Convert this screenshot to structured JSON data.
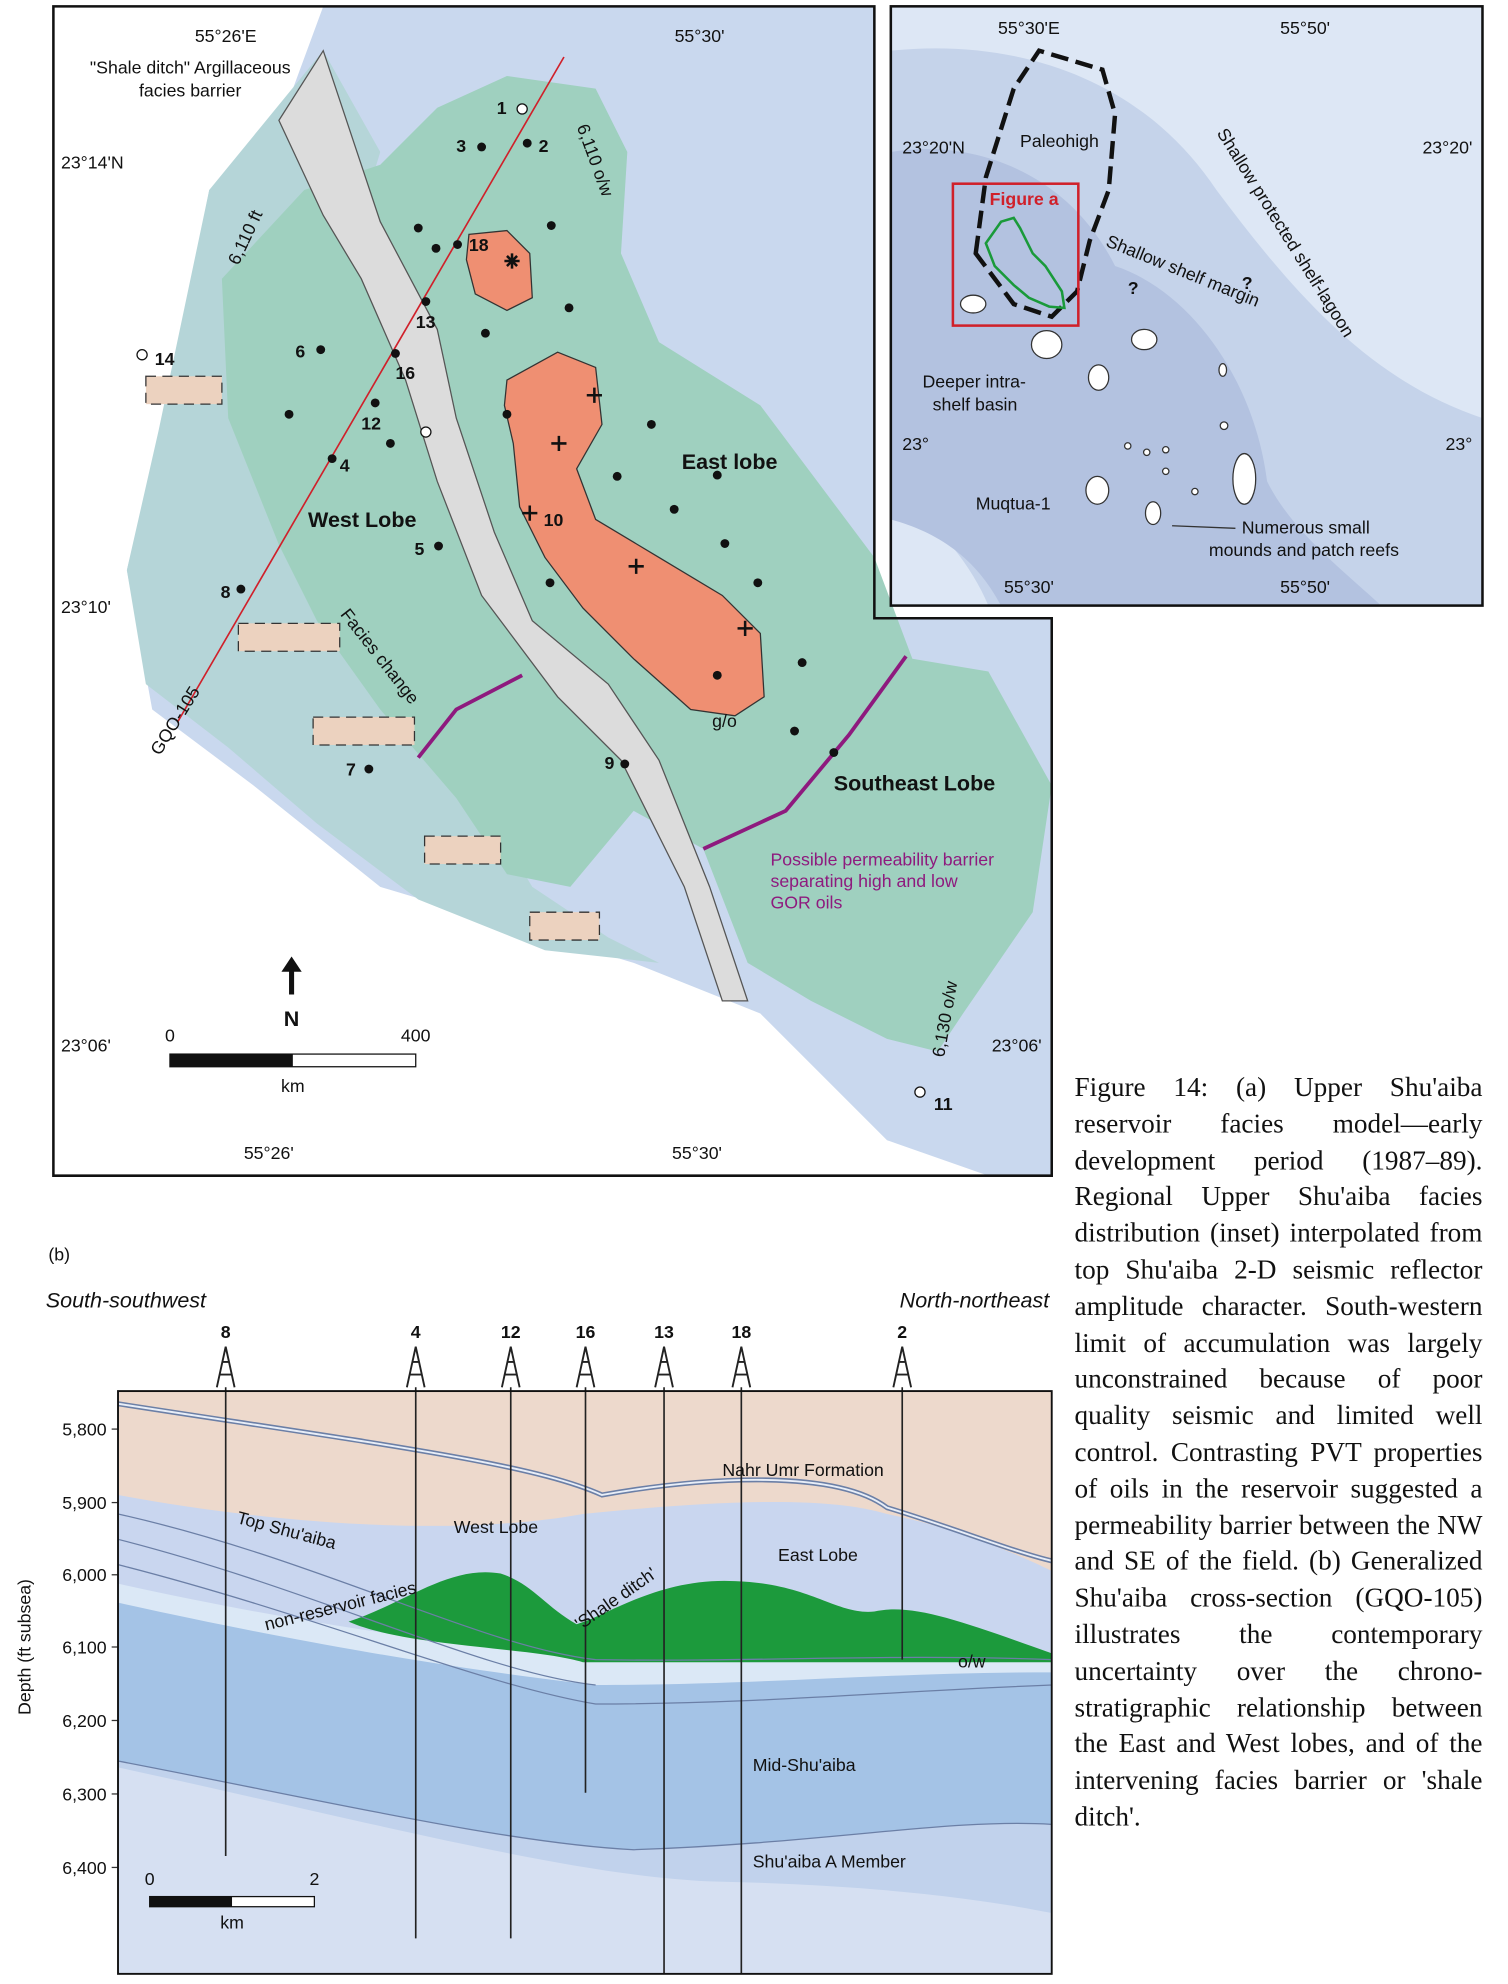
{
  "map_a": {
    "lon_top": [
      "55°26'E",
      "55°30'"
    ],
    "lon_bottom": [
      "55°26'",
      "55°30'"
    ],
    "lat_left": [
      "23°14'N",
      "23°10'",
      "23°06'"
    ],
    "lat_right": [
      "23°06'"
    ],
    "shale_ditch_note": [
      "\"Shale ditch\" Argillaceous",
      "facies barrier"
    ],
    "wells": [
      "1",
      "2",
      "3",
      "18",
      "13",
      "6",
      "16",
      "12",
      "4",
      "5",
      "10",
      "8",
      "7",
      "9",
      "11",
      "14"
    ],
    "contours": [
      "6,110 o/w",
      "6,110 ft",
      "6,130 o/w"
    ],
    "labels": {
      "east": "East lobe",
      "west": "West Lobe",
      "southeast": "Southeast Lobe",
      "facies_change": "Facies change",
      "gas_oil": "g/o",
      "section_line": "GQO-105"
    },
    "barrier_note": [
      "Possible permeability barrier",
      "separating high and low",
      "GOR oils"
    ],
    "north": "N",
    "scale": [
      "0",
      "400",
      "km"
    ]
  },
  "inset": {
    "lon_top": [
      "55°30'E",
      "55°50'"
    ],
    "lon_bottom": [
      "55°30'",
      "55°50'"
    ],
    "lat_left": [
      "23°20'N",
      "23°"
    ],
    "lat_right": [
      "23°20'",
      "23°"
    ],
    "paleohigh": "Paleohigh",
    "figure_a": "Figure a",
    "shelf_margin": "Shallow shelf margin",
    "lagoon": "Shallow protected shelf-lagoon",
    "question": [
      "?",
      "?"
    ],
    "basin": [
      "Deeper intra-",
      "shelf basin"
    ],
    "well": "Muqtua-1",
    "mounds": [
      "Numerous small",
      "mounds and patch reefs"
    ]
  },
  "section_b": {
    "panel": "(b)",
    "left_direction": "South-southwest",
    "right_direction": "North-northeast",
    "wells": [
      "8",
      "4",
      "12",
      "16",
      "13",
      "18",
      "2"
    ],
    "axis_label": "Depth (ft subsea)",
    "depth_ticks": [
      "5,800",
      "5,900",
      "6,000",
      "6,100",
      "6,200",
      "6,300",
      "6,400"
    ],
    "labels": {
      "nahr_umr": "Nahr Umr Formation",
      "top": "Top Shu'aiba",
      "west": "West Lobe",
      "east": "East Lobe",
      "non_reservoir": "non-reservoir facies",
      "shale_ditch": "'Shale ditch'",
      "oil_water": "o/w",
      "mid": "Mid-Shu'aiba",
      "member_a": "Shu'aiba A Member"
    },
    "scale": [
      "0",
      "2",
      "km"
    ]
  },
  "caption": "Figure 14: (a) Upper Shu'aiba reservoir facies model—early development period (1987–89). Regional Upper Shu'aiba facies distribution (inset) interpolated from top Shu'aiba 2-D seismic reflector amplitude character. South-western limit of accumulation was largely unconstrained because of poor quality seismic and limited well control. Contrasting PVT properties of oils in the reservoir suggested a permeability barrier between the NW and SE of the field. (b) Generalized Shu'aiba cross-section (GQO-105) illustrates the contemporary uncertainty over the chrono-stratigraphic relationship between the East and West lobes, and of the intervening facies barrier or 'shale ditch'."
}
